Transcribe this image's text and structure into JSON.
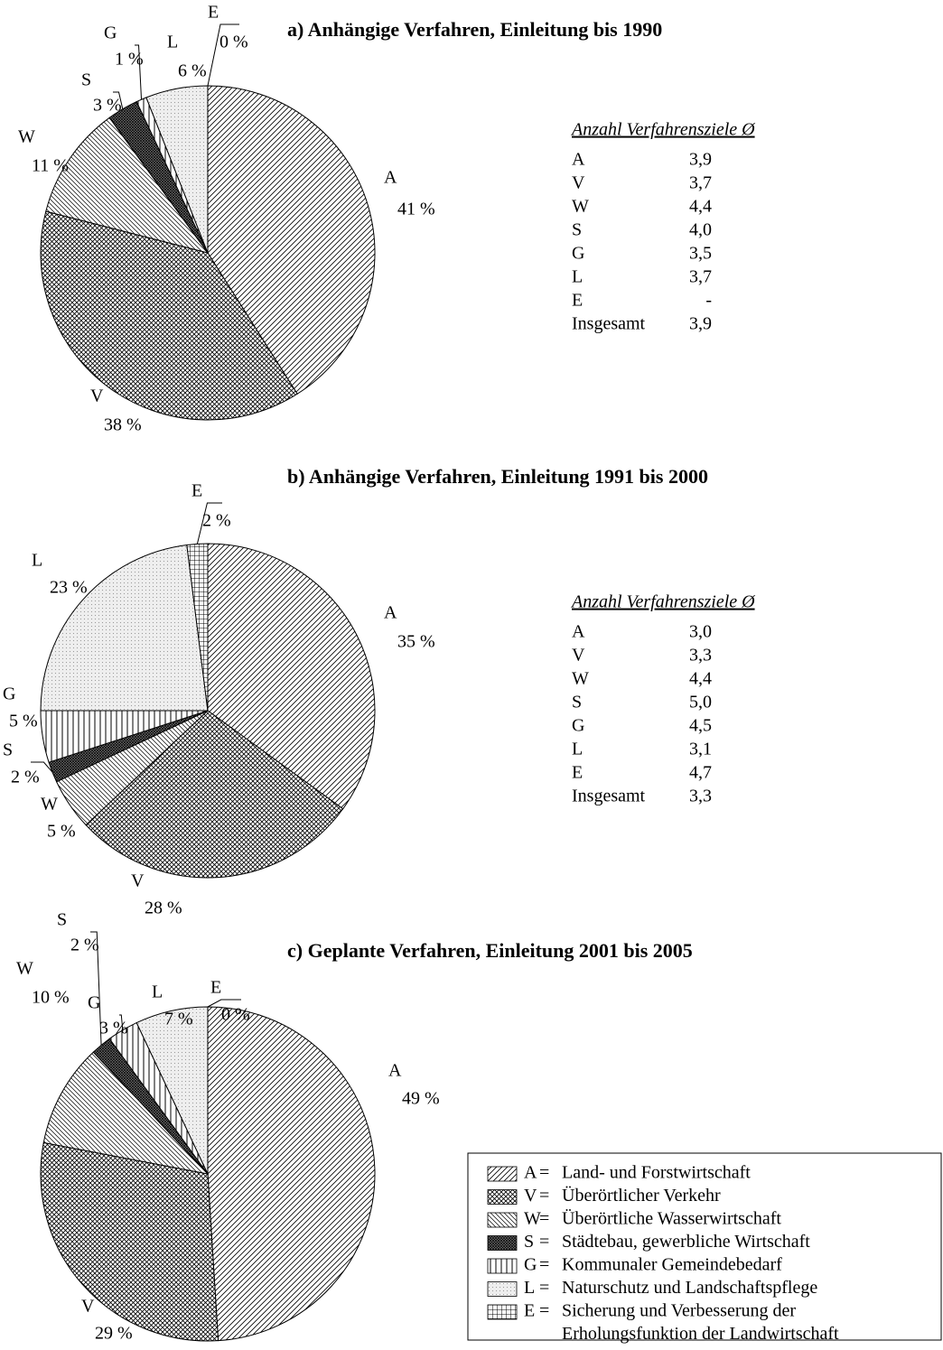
{
  "chart_data": [
    {
      "type": "pie",
      "title": "a) Anhängige Verfahren, Einleitung bis 1990",
      "categories": [
        "A",
        "V",
        "W",
        "S",
        "G",
        "L",
        "E"
      ],
      "values": [
        41,
        38,
        11,
        3,
        1,
        6,
        0
      ],
      "value_labels": [
        "41 %",
        "38 %",
        "11 %",
        "3 %",
        "1 %",
        "6 %",
        "0 %"
      ],
      "table": {
        "title": "Anzahl Verfahrensziele Ø",
        "rows": [
          [
            "A",
            "3,9"
          ],
          [
            "V",
            "3,7"
          ],
          [
            "W",
            "4,4"
          ],
          [
            "S",
            "4,0"
          ],
          [
            "G",
            "3,5"
          ],
          [
            "L",
            "3,7"
          ],
          [
            "E",
            "-"
          ],
          [
            "Insgesamt",
            "3,9"
          ]
        ]
      }
    },
    {
      "type": "pie",
      "title": "b) Anhängige Verfahren, Einleitung 1991 bis 2000",
      "categories": [
        "A",
        "V",
        "W",
        "S",
        "G",
        "L",
        "E"
      ],
      "values": [
        35,
        28,
        5,
        2,
        5,
        23,
        2
      ],
      "value_labels": [
        "35 %",
        "28 %",
        "5 %",
        "2 %",
        "5 %",
        "23 %",
        "2 %"
      ],
      "table": {
        "title": "Anzahl Verfahrensziele Ø",
        "rows": [
          [
            "A",
            "3,0"
          ],
          [
            "V",
            "3,3"
          ],
          [
            "W",
            "4,4"
          ],
          [
            "S",
            "5,0"
          ],
          [
            "G",
            "4,5"
          ],
          [
            "L",
            "3,1"
          ],
          [
            "E",
            "4,7"
          ],
          [
            "Insgesamt",
            "3,3"
          ]
        ]
      }
    },
    {
      "type": "pie",
      "title": "c) Geplante Verfahren, Einleitung 2001 bis 2005",
      "categories": [
        "A",
        "V",
        "W",
        "S",
        "G",
        "L",
        "E"
      ],
      "values": [
        49,
        29,
        10,
        2,
        3,
        7,
        0
      ],
      "value_labels": [
        "49 %",
        "29 %",
        "10 %",
        "2 %",
        "3 %",
        "7 %",
        "0 %"
      ]
    }
  ],
  "legend": {
    "items": [
      {
        "key": "A",
        "label": "Land- und Forstwirtschaft"
      },
      {
        "key": "V",
        "label": "Überörtlicher Verkehr"
      },
      {
        "key": "W",
        "label": "Überörtliche Wasserwirtschaft"
      },
      {
        "key": "S",
        "label": "Städtebau, gewerbliche Wirtschaft"
      },
      {
        "key": "G",
        "label": "Kommunaler Gemeindebedarf"
      },
      {
        "key": "L",
        "label": "Naturschutz und Landschaftspflege"
      },
      {
        "key": "E",
        "label": [
          "Sicherung und Verbesserung der",
          "Erholungsfunktion der Landwirtschaft"
        ]
      }
    ]
  }
}
